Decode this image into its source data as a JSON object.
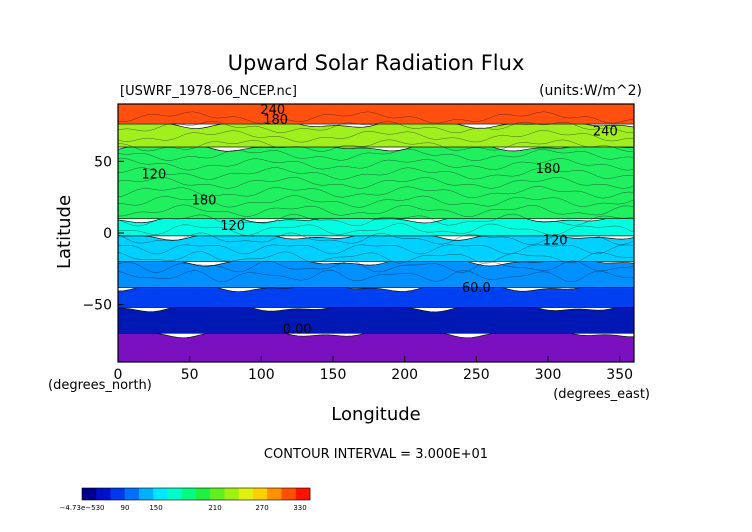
{
  "chart_data": {
    "type": "heatmap",
    "title": "Upward Solar Radiation Flux",
    "file_label": "[USWRF_1978-06_NCEP.nc]",
    "units_label": "(units:W/m^2)",
    "xlabel": "Longitude",
    "ylabel": "Latitude",
    "x_unit_label": "(degrees_east)",
    "y_unit_label": "(degrees_north)",
    "xlim": [
      0,
      360
    ],
    "ylim": [
      -90,
      90
    ],
    "x_ticks": [
      "0",
      "50",
      "100",
      "150",
      "200",
      "250",
      "300",
      "350"
    ],
    "y_ticks": [
      "50",
      "0",
      "−50"
    ],
    "contour_interval_text": "CONTOUR INTERVAL = 3.000E+01",
    "contour_labels": [
      "240",
      "180",
      "120",
      "180",
      "120",
      "120",
      "180",
      "240",
      "60.0",
      "0.00"
    ],
    "colorbar": {
      "tick_labels": [
        "−4.73e−530",
        "90",
        "150",
        "210",
        "270",
        "330"
      ],
      "colors": [
        "#00008c",
        "#0010c8",
        "#0038f0",
        "#0070ff",
        "#00b0ff",
        "#00e8ff",
        "#00ffc8",
        "#00ff80",
        "#20f040",
        "#60f020",
        "#a0f010",
        "#e0f010",
        "#ffd000",
        "#ff9000",
        "#ff5000",
        "#ff1000"
      ]
    },
    "bands": [
      {
        "lat_range": [
          -90,
          -70
        ],
        "value_range": [
          0,
          30
        ],
        "color": "#7a10c0"
      },
      {
        "lat_range": [
          -70,
          -52
        ],
        "value_range": [
          30,
          60
        ],
        "color": "#0018b4"
      },
      {
        "lat_range": [
          -52,
          -38
        ],
        "value_range": [
          60,
          90
        ],
        "color": "#0040f0"
      },
      {
        "lat_range": [
          -38,
          -20
        ],
        "value_range": [
          90,
          120
        ],
        "color": "#0090ff"
      },
      {
        "lat_range": [
          -20,
          -2
        ],
        "value_range": [
          120,
          150
        ],
        "color": "#00d0ff"
      },
      {
        "lat_range": [
          -2,
          10
        ],
        "value_range": [
          120,
          150
        ],
        "color": "#00ffe0"
      },
      {
        "lat_range": [
          10,
          60
        ],
        "value_range": [
          150,
          210
        ],
        "color": "#20f060"
      },
      {
        "lat_range": [
          60,
          76
        ],
        "value_range": [
          210,
          240
        ],
        "color": "#a0f020"
      },
      {
        "lat_range": [
          76,
          90
        ],
        "value_range": [
          240,
          330
        ],
        "color": "#ff5010"
      }
    ]
  }
}
